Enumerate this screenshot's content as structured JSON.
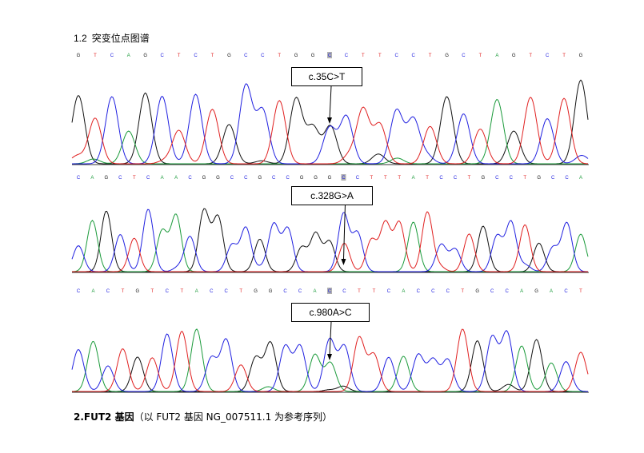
{
  "section": {
    "number": "1.2",
    "title": "突变位点图谱"
  },
  "colors": {
    "A": "#1a9a3a",
    "C": "#2020e0",
    "G": "#111111",
    "T": "#e02020",
    "highlight": "#b0b0b0"
  },
  "panels": [
    {
      "sequence": "GTCAGCTCTGCCTGGCCTTCCTGCTAGTCTG",
      "highlight_index": 15,
      "mutation_label": "c.35C>T"
    },
    {
      "sequence": "CAGCTCAACGGCCGCCGGGCCTTTATCCTGCCTGCCA",
      "highlight_index": 19,
      "mutation_label": "c.328G>A"
    },
    {
      "sequence": "CACTGTCTACCTGGCCACCTTCACCCTGCCAGACT",
      "highlight_index": 17,
      "mutation_label": "c.980A>C"
    }
  ],
  "footer": {
    "bold": "2.FUT2 基因",
    "rest": "（以 FUT2 基因 NG_007511.1 为参考序列）"
  }
}
